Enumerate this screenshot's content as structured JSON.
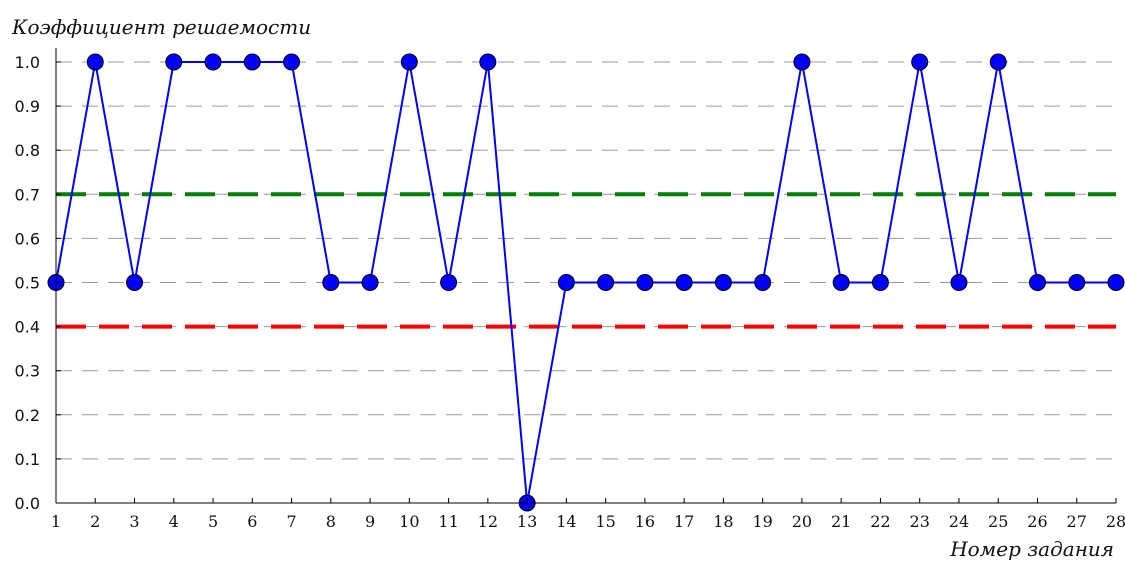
{
  "chart_data": {
    "type": "line",
    "ylabel": "Коэффициент решаемости",
    "xlabel": "Номер задания",
    "x": [
      1,
      2,
      3,
      4,
      5,
      6,
      7,
      8,
      9,
      10,
      11,
      12,
      13,
      14,
      15,
      16,
      17,
      18,
      19,
      20,
      21,
      22,
      23,
      24,
      25,
      26,
      27,
      28
    ],
    "x_tick_labels": [
      "1",
      "2",
      "3",
      "4",
      "5",
      "6",
      "7",
      "8",
      "9",
      "10",
      "11",
      "12",
      "13",
      "14",
      "15",
      "16",
      "17",
      "18",
      "19",
      "20",
      "21",
      "22",
      "23",
      "24",
      "25",
      "26",
      "27",
      "28"
    ],
    "y_tick_labels": [
      "0.0",
      "0.1",
      "0.2",
      "0.3",
      "0.4",
      "0.5",
      "0.6",
      "0.7",
      "0.8",
      "0.9",
      "1.0"
    ],
    "xlim": [
      1,
      28
    ],
    "ylim": [
      0,
      1.0
    ],
    "grid": "horizontal dashed",
    "series": [
      {
        "values": [
          0.5,
          1.0,
          0.5,
          1.0,
          1.0,
          1.0,
          1.0,
          0.5,
          0.5,
          1.0,
          0.5,
          1.0,
          0.0,
          0.5,
          0.5,
          0.5,
          0.5,
          0.5,
          0.5,
          1.0,
          0.5,
          0.5,
          1.0,
          0.5,
          1.0,
          0.5,
          0.5,
          0.5
        ],
        "color": "#0000ff",
        "marker": "circle"
      }
    ],
    "reference_lines": [
      {
        "y": 0.7,
        "color": "#008000",
        "style": "dashed"
      },
      {
        "y": 0.4,
        "color": "#ff0000",
        "style": "dashed"
      }
    ]
  }
}
